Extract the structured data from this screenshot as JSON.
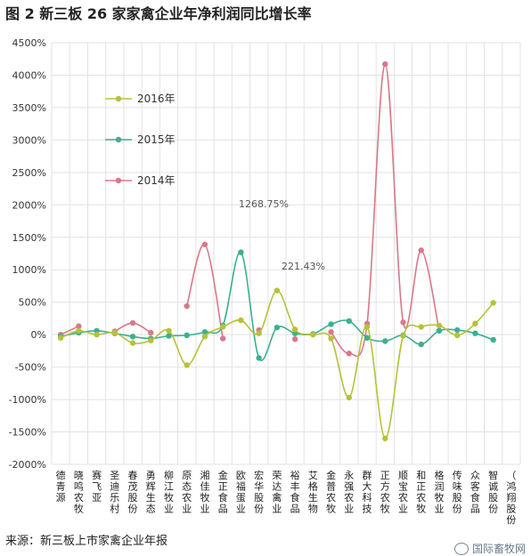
{
  "title": "图 2 新三板 26 家家禽企业年净利润同比增长率",
  "source": "来源：新三板上市家禽企业年报",
  "watermark": "国际畜牧网",
  "chart_data": {
    "type": "line",
    "title": "图 2 新三板 26 家家禽企业年净利润同比增长率",
    "categories": [
      "德青源",
      "晓鸣农牧",
      "赛飞亚",
      "圣迪乐村",
      "春茂股份",
      "勇辉生态",
      "柳江牧业",
      "原态农业",
      "湘佳牧业",
      "金正食品",
      "欧福蛋业",
      "宏华股份",
      "荣达禽业",
      "裕丰食品",
      "艾格生物",
      "金普农牧",
      "永强农业",
      "群大科技",
      "正方农牧",
      "顺宝农业",
      "和正农牧",
      "格润牧业",
      "传味股份",
      "众客食品",
      "智诚股份",
      "（鸿翔股份"
    ],
    "ylim": [
      -2000,
      4500
    ],
    "ytick_values": [
      -2000,
      -1500,
      -1000,
      -500,
      0,
      500,
      1000,
      1500,
      2000,
      2500,
      3000,
      3500,
      4000,
      4500
    ],
    "ytick_labels": [
      "-2000%",
      "-1500%",
      "-1000%",
      "-500%",
      "0%",
      "500%",
      "1000%",
      "1500%",
      "2000%",
      "2500%",
      "3000%",
      "3500%",
      "4000%",
      "4500%"
    ],
    "legend": [
      "2016年",
      "2015年",
      "2014年"
    ],
    "series": [
      {
        "name": "2016年",
        "color": "#b5c239",
        "values": [
          -50,
          60,
          0,
          30,
          -130,
          -90,
          60,
          -470,
          -30,
          120,
          221.43,
          20,
          680,
          80,
          0,
          -60,
          -970,
          120,
          -1600,
          -20,
          120,
          140,
          -10,
          170,
          490,
          null
        ]
      },
      {
        "name": "2015年",
        "color": "#3bb08f",
        "values": [
          -30,
          30,
          60,
          20,
          -30,
          -60,
          -20,
          -10,
          40,
          140,
          1268.75,
          -360,
          110,
          20,
          10,
          160,
          210,
          -50,
          -100,
          -10,
          -150,
          60,
          70,
          20,
          -80,
          null
        ]
      },
      {
        "name": "2014年",
        "color": "#d9788a",
        "values": [
          0,
          130,
          null,
          50,
          180,
          30,
          null,
          440,
          1390,
          -60,
          null,
          70,
          null,
          -70,
          null,
          40,
          -290,
          170,
          4170,
          190,
          1300,
          60,
          null,
          null,
          null,
          null
        ]
      }
    ],
    "annotations": [
      {
        "text": "1268.75%",
        "category_index": 10,
        "value": 1268.75
      },
      {
        "text": "221.43%",
        "category_index": 10,
        "value": 221.43
      }
    ]
  }
}
